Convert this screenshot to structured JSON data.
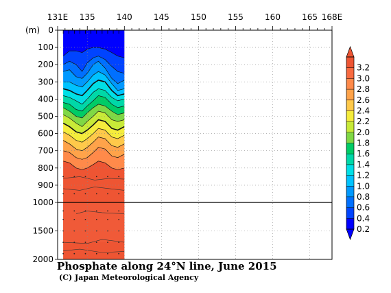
{
  "chart_data": {
    "type": "heatmap",
    "title": "Phosphate along 24°N line, June 2015",
    "credit": "(C) Japan Meteorological Agency",
    "ylabel": "(m)",
    "xlim": [
      131,
      168
    ],
    "x_ticks": [
      {
        "value": 131,
        "label": "131E"
      },
      {
        "value": 135,
        "label": "135"
      },
      {
        "value": 140,
        "label": "140"
      },
      {
        "value": 145,
        "label": "145"
      },
      {
        "value": 150,
        "label": "150"
      },
      {
        "value": 155,
        "label": "155"
      },
      {
        "value": 160,
        "label": "160"
      },
      {
        "value": 165,
        "label": "165"
      },
      {
        "value": 168,
        "label": "168E"
      }
    ],
    "station_lons": [
      131.75,
      132.5,
      133.25,
      134.0,
      134.75,
      135.5,
      136.25,
      137.0,
      137.75,
      138.5,
      139.25
    ],
    "y_upper": {
      "range": [
        0,
        1000
      ],
      "ticks": [
        "0",
        "100",
        "200",
        "300",
        "400",
        "500",
        "600",
        "700",
        "800",
        "900",
        "1000"
      ]
    },
    "y_lower": {
      "range": [
        1000,
        2000
      ],
      "ticks": [
        "1500",
        "2000"
      ]
    },
    "data_lon_range": [
      131.75,
      140
    ],
    "colorbar": {
      "levels": [
        0.2,
        0.4,
        0.6,
        0.8,
        1.0,
        1.2,
        1.4,
        1.6,
        1.8,
        2.0,
        2.2,
        2.4,
        2.6,
        2.8,
        3.0,
        3.2
      ],
      "labels": [
        "0.2",
        "0.4",
        "0.6",
        "0.8",
        "1.0",
        "1.2",
        "1.4",
        "1.6",
        "1.8",
        "2.0",
        "2.2",
        "2.4",
        "2.6",
        "2.8",
        "3.0",
        "3.2"
      ],
      "colors": [
        "#0000ff",
        "#0044ff",
        "#0070ff",
        "#0099ff",
        "#00c3ff",
        "#00dfe6",
        "#00d8a8",
        "#00cc66",
        "#7fd845",
        "#c8ea38",
        "#f5ec3c",
        "#ffc94a",
        "#ffa34a",
        "#ff8a4a",
        "#f86a40",
        "#ee5533"
      ],
      "over_color": "#ee5533",
      "under_color": "#0000ff"
    },
    "profiles": {
      "levels": [
        0.2,
        0.4,
        0.6,
        0.8,
        1.0,
        1.2,
        1.4,
        1.6,
        1.8,
        2.0,
        2.2,
        2.4,
        2.6,
        2.8
      ],
      "lon": [
        131.75,
        132.6,
        133.5,
        134.3,
        135.0,
        135.8,
        136.5,
        137.4,
        138.3,
        139.1,
        140.0
      ],
      "depth_m": [
        [
          150,
          120,
          120,
          130,
          110,
          100,
          100,
          110,
          130,
          150,
          160
        ],
        [
          200,
          180,
          200,
          240,
          190,
          160,
          150,
          170,
          210,
          240,
          250
        ],
        [
          240,
          230,
          270,
          280,
          250,
          200,
          180,
          220,
          280,
          310,
          290
        ],
        [
          300,
          300,
          320,
          330,
          300,
          260,
          240,
          260,
          310,
          350,
          340
        ],
        [
          340,
          350,
          370,
          380,
          350,
          310,
          290,
          300,
          350,
          380,
          370
        ],
        [
          380,
          390,
          410,
          430,
          400,
          360,
          340,
          350,
          390,
          410,
          400
        ],
        [
          420,
          430,
          460,
          470,
          440,
          410,
          380,
          390,
          430,
          450,
          440
        ],
        [
          450,
          470,
          500,
          510,
          480,
          450,
          430,
          440,
          470,
          490,
          480
        ],
        [
          490,
          510,
          540,
          560,
          530,
          500,
          470,
          480,
          520,
          530,
          520
        ],
        [
          540,
          560,
          590,
          600,
          580,
          550,
          520,
          530,
          570,
          580,
          560
        ],
        [
          590,
          610,
          640,
          650,
          630,
          600,
          570,
          580,
          620,
          630,
          610
        ],
        [
          640,
          660,
          690,
          700,
          680,
          650,
          620,
          630,
          670,
          680,
          660
        ],
        [
          700,
          710,
          740,
          750,
          740,
          710,
          680,
          690,
          730,
          740,
          720
        ],
        [
          760,
          770,
          800,
          810,
          800,
          780,
          760,
          770,
          800,
          810,
          800
        ]
      ]
    },
    "deep_value": 3.0
  }
}
